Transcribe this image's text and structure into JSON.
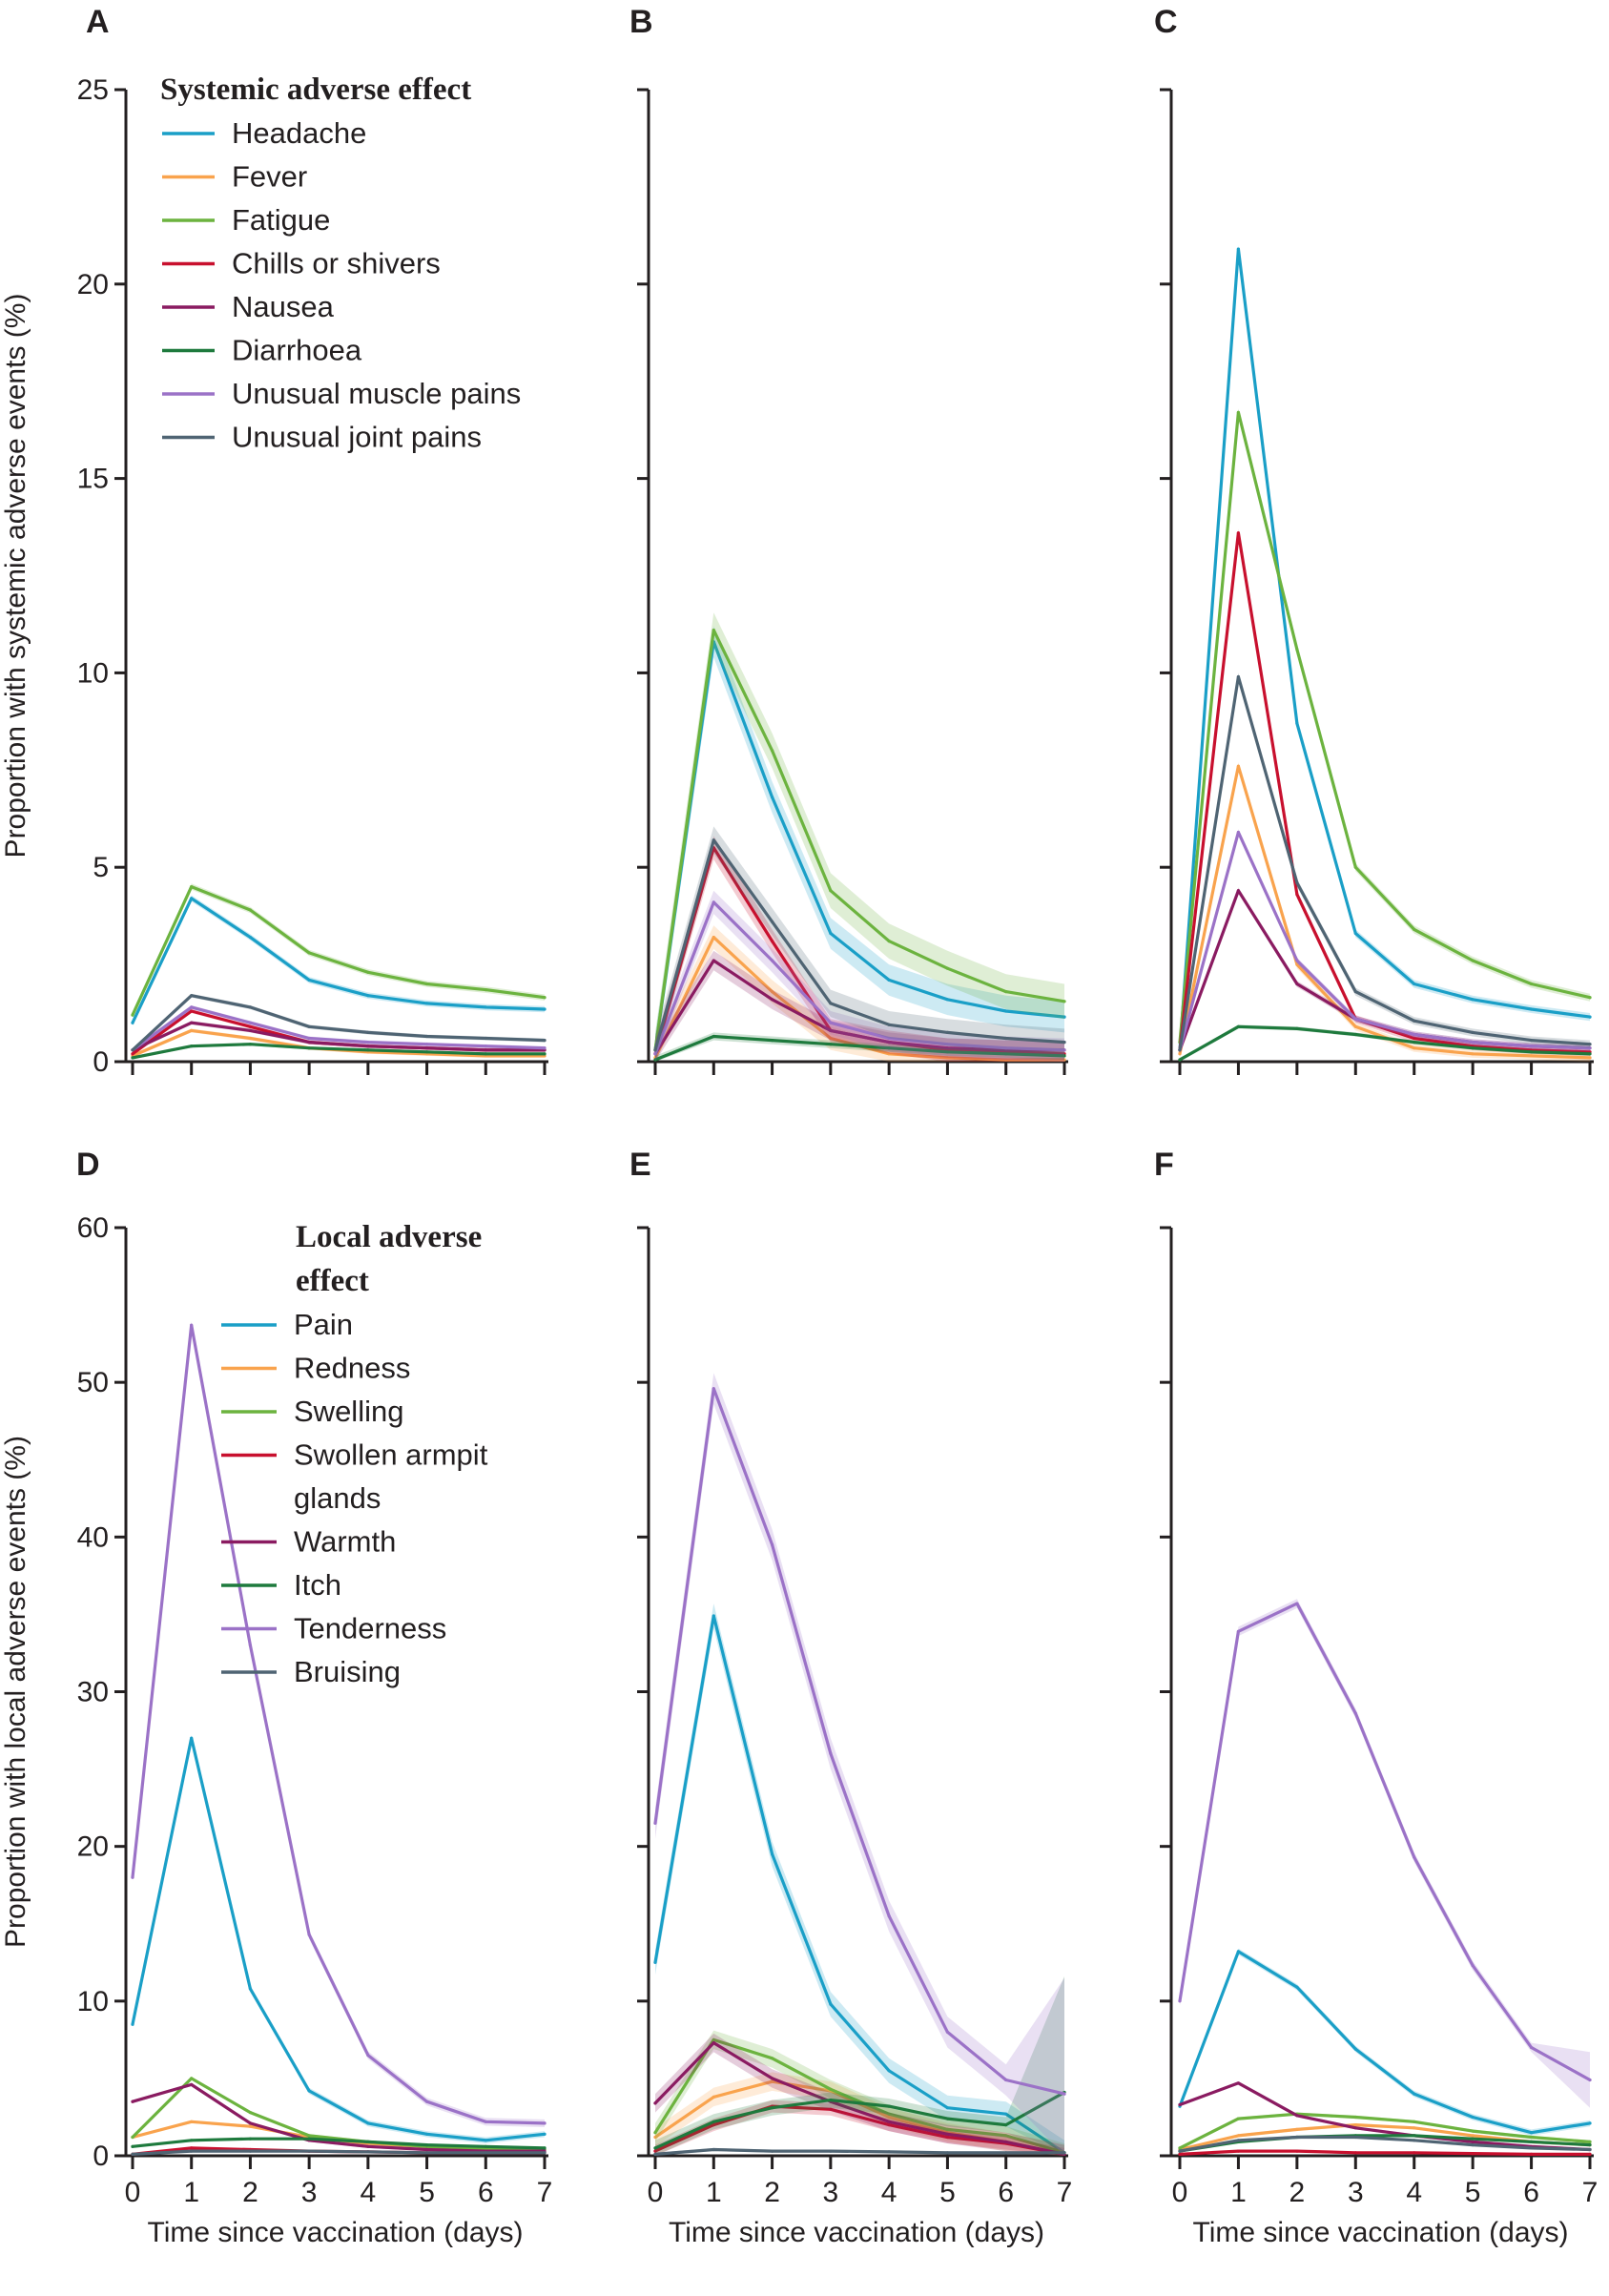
{
  "colors": {
    "headache": "#1a9fc7",
    "fever": "#f9a34d",
    "fatigue": "#6cb33f",
    "chills": "#c8102e",
    "nausea": "#8a1b61",
    "diarrhoea": "#1e7a3d",
    "muscle": "#9b72c7",
    "joint": "#4f6473",
    "axis": "#231f20"
  },
  "icon": "none",
  "legends": {
    "systemic": {
      "title_lines": [
        "Systemic adverse effect"
      ],
      "items": [
        {
          "lines": [
            "Headache"
          ],
          "color": "#1a9fc7"
        },
        {
          "lines": [
            "Fever"
          ],
          "color": "#f9a34d"
        },
        {
          "lines": [
            "Fatigue"
          ],
          "color": "#6cb33f"
        },
        {
          "lines": [
            "Chills or shivers"
          ],
          "color": "#c8102e"
        },
        {
          "lines": [
            "Nausea"
          ],
          "color": "#8a1b61"
        },
        {
          "lines": [
            "Diarrhoea"
          ],
          "color": "#1e7a3d"
        },
        {
          "lines": [
            "Unusual muscle pains"
          ],
          "color": "#9b72c7"
        },
        {
          "lines": [
            "Unusual joint pains"
          ],
          "color": "#4f6473"
        }
      ]
    },
    "local": {
      "title_lines": [
        "Local adverse",
        "effect"
      ],
      "items": [
        {
          "lines": [
            "Pain"
          ],
          "color": "#1a9fc7"
        },
        {
          "lines": [
            "Redness"
          ],
          "color": "#f9a34d"
        },
        {
          "lines": [
            "Swelling"
          ],
          "color": "#6cb33f"
        },
        {
          "lines": [
            "Swollen armpit",
            "glands"
          ],
          "color": "#c8102e"
        },
        {
          "lines": [
            "Warmth"
          ],
          "color": "#8a1b61"
        },
        {
          "lines": [
            "Itch"
          ],
          "color": "#1e7a3d"
        },
        {
          "lines": [
            "Tenderness"
          ],
          "color": "#9b72c7"
        },
        {
          "lines": [
            "Bruising"
          ],
          "color": "#4f6473"
        }
      ]
    }
  },
  "chart_data": [
    {
      "panel": "A",
      "type": "line",
      "legend": "systemic",
      "legend_placement": "top-left",
      "ylabel": "Proportion with systemic adverse events (%)",
      "xlabel": "",
      "ylim": [
        0,
        25
      ],
      "yticks": [
        0,
        5,
        10,
        15,
        20,
        25
      ],
      "y_tick_labels_shown": true,
      "x_tick_labels_shown": false,
      "x": [
        0,
        1,
        2,
        3,
        4,
        5,
        6,
        7
      ],
      "xlim": [
        0,
        7
      ],
      "grid": false,
      "series": [
        {
          "key": "headache",
          "values": [
            1.0,
            4.2,
            3.2,
            2.1,
            1.7,
            1.5,
            1.4,
            1.35
          ],
          "band": 0.08
        },
        {
          "key": "fever",
          "values": [
            0.15,
            0.8,
            0.6,
            0.35,
            0.25,
            0.2,
            0.15,
            0.15
          ],
          "band": 0.05
        },
        {
          "key": "fatigue",
          "values": [
            1.2,
            4.5,
            3.9,
            2.8,
            2.3,
            2.0,
            1.85,
            1.65
          ],
          "band": 0.08
        },
        {
          "key": "chills",
          "values": [
            0.2,
            1.3,
            0.9,
            0.5,
            0.4,
            0.35,
            0.3,
            0.3
          ],
          "band": 0.05
        },
        {
          "key": "nausea",
          "values": [
            0.3,
            1.0,
            0.8,
            0.5,
            0.4,
            0.35,
            0.3,
            0.3
          ],
          "band": 0.05
        },
        {
          "key": "diarrhoea",
          "values": [
            0.1,
            0.4,
            0.45,
            0.35,
            0.3,
            0.25,
            0.2,
            0.2
          ],
          "band": 0.04
        },
        {
          "key": "muscle",
          "values": [
            0.3,
            1.4,
            1.0,
            0.6,
            0.5,
            0.45,
            0.4,
            0.35
          ],
          "band": 0.05
        },
        {
          "key": "joint",
          "values": [
            0.3,
            1.7,
            1.4,
            0.9,
            0.75,
            0.65,
            0.6,
            0.55
          ],
          "band": 0.05
        }
      ]
    },
    {
      "panel": "B",
      "type": "line",
      "legend": null,
      "ylabel": "",
      "xlabel": "",
      "ylim": [
        0,
        25
      ],
      "yticks": [
        0,
        5,
        10,
        15,
        20,
        25
      ],
      "y_tick_labels_shown": false,
      "x_tick_labels_shown": false,
      "x": [
        0,
        1,
        2,
        3,
        4,
        5,
        6,
        7
      ],
      "xlim": [
        0,
        7
      ],
      "grid": false,
      "series": [
        {
          "key": "headache",
          "values": [
            0.3,
            10.8,
            6.8,
            3.3,
            2.1,
            1.6,
            1.3,
            1.15
          ],
          "band": 0.4
        },
        {
          "key": "fever",
          "values": [
            0.1,
            3.2,
            1.8,
            0.6,
            0.2,
            0.1,
            0.05,
            0.05
          ],
          "band": 0.3
        },
        {
          "key": "fatigue",
          "values": [
            0.3,
            11.1,
            8.0,
            4.4,
            3.1,
            2.4,
            1.8,
            1.55
          ],
          "band": 0.45
        },
        {
          "key": "chills",
          "values": [
            0.2,
            5.5,
            3.1,
            0.8,
            0.5,
            0.3,
            0.25,
            0.2
          ],
          "band": 0.3
        },
        {
          "key": "nausea",
          "values": [
            0.2,
            2.6,
            1.6,
            0.8,
            0.5,
            0.35,
            0.3,
            0.3
          ],
          "band": 0.25
        },
        {
          "key": "diarrhoea",
          "values": [
            0.05,
            0.65,
            0.55,
            0.45,
            0.35,
            0.25,
            0.2,
            0.15
          ],
          "band": 0.1
        },
        {
          "key": "muscle",
          "values": [
            0.2,
            4.1,
            2.6,
            1.0,
            0.6,
            0.45,
            0.35,
            0.3
          ],
          "band": 0.3
        },
        {
          "key": "joint",
          "values": [
            0.3,
            5.7,
            3.6,
            1.5,
            0.95,
            0.75,
            0.6,
            0.5
          ],
          "band": 0.35
        }
      ]
    },
    {
      "panel": "C",
      "type": "line",
      "legend": null,
      "ylabel": "",
      "xlabel": "",
      "ylim": [
        0,
        25
      ],
      "yticks": [
        0,
        5,
        10,
        15,
        20,
        25
      ],
      "y_tick_labels_shown": false,
      "x_tick_labels_shown": false,
      "x": [
        0,
        1,
        2,
        3,
        4,
        5,
        6,
        7
      ],
      "xlim": [
        0,
        7
      ],
      "grid": false,
      "series": [
        {
          "key": "headache",
          "values": [
            0.3,
            20.9,
            8.7,
            3.3,
            2.0,
            1.6,
            1.35,
            1.15
          ],
          "band": 0.1
        },
        {
          "key": "fever",
          "values": [
            0.2,
            7.6,
            2.5,
            0.9,
            0.35,
            0.2,
            0.15,
            0.1
          ],
          "band": 0.1
        },
        {
          "key": "fatigue",
          "values": [
            0.5,
            16.7,
            10.6,
            5.0,
            3.4,
            2.6,
            2.0,
            1.65
          ],
          "band": 0.1
        },
        {
          "key": "chills",
          "values": [
            0.3,
            13.6,
            4.3,
            1.1,
            0.6,
            0.4,
            0.3,
            0.25
          ],
          "band": 0.1
        },
        {
          "key": "nausea",
          "values": [
            0.3,
            4.4,
            2.0,
            1.1,
            0.7,
            0.5,
            0.4,
            0.35
          ],
          "band": 0.08
        },
        {
          "key": "diarrhoea",
          "values": [
            0.05,
            0.9,
            0.85,
            0.7,
            0.5,
            0.35,
            0.25,
            0.2
          ],
          "band": 0.05
        },
        {
          "key": "muscle",
          "values": [
            0.3,
            5.9,
            2.6,
            1.1,
            0.7,
            0.5,
            0.4,
            0.35
          ],
          "band": 0.08
        },
        {
          "key": "joint",
          "values": [
            0.3,
            9.9,
            4.6,
            1.8,
            1.05,
            0.75,
            0.55,
            0.45
          ],
          "band": 0.1
        }
      ]
    },
    {
      "panel": "D",
      "type": "line",
      "legend": "local",
      "legend_placement": "top-right",
      "ylabel": "Proportion with local adverse events (%)",
      "xlabel": "Time since vaccination (days)",
      "ylim": [
        0,
        60
      ],
      "yticks": [
        0,
        10,
        20,
        30,
        40,
        50,
        60
      ],
      "y_tick_labels_shown": true,
      "x_tick_labels_shown": true,
      "x": [
        0,
        1,
        2,
        3,
        4,
        5,
        6,
        7
      ],
      "xlim": [
        0,
        7
      ],
      "grid": false,
      "series": [
        {
          "key": "headache",
          "values": [
            8.5,
            27.0,
            10.8,
            4.2,
            2.1,
            1.4,
            1.0,
            1.4
          ],
          "band": 0.2
        },
        {
          "key": "fever",
          "values": [
            1.2,
            2.2,
            1.9,
            1.2,
            0.8,
            0.6,
            0.5,
            0.4
          ],
          "band": 0.1
        },
        {
          "key": "fatigue",
          "values": [
            1.2,
            5.0,
            2.8,
            1.3,
            0.9,
            0.6,
            0.45,
            0.4
          ],
          "band": 0.1
        },
        {
          "key": "chills",
          "values": [
            0.1,
            0.5,
            0.4,
            0.3,
            0.25,
            0.2,
            0.2,
            0.2
          ],
          "band": 0.05
        },
        {
          "key": "nausea",
          "values": [
            3.5,
            4.6,
            2.1,
            1.0,
            0.6,
            0.4,
            0.3,
            0.3
          ],
          "band": 0.1
        },
        {
          "key": "diarrhoea",
          "values": [
            0.6,
            1.0,
            1.1,
            1.1,
            0.9,
            0.7,
            0.6,
            0.5
          ],
          "band": 0.05
        },
        {
          "key": "muscle",
          "values": [
            18.0,
            53.7,
            33.0,
            14.3,
            6.5,
            3.5,
            2.2,
            2.1
          ],
          "band": 0.25
        },
        {
          "key": "joint",
          "values": [
            0.1,
            0.3,
            0.3,
            0.3,
            0.25,
            0.2,
            0.2,
            0.2
          ],
          "band": 0.05
        }
      ]
    },
    {
      "panel": "E",
      "type": "line",
      "legend": null,
      "ylabel": "",
      "xlabel": "Time since vaccination (days)",
      "ylim": [
        0,
        60
      ],
      "yticks": [
        0,
        10,
        20,
        30,
        40,
        50,
        60
      ],
      "y_tick_labels_shown": false,
      "x_tick_labels_shown": true,
      "x": [
        0,
        1,
        2,
        3,
        4,
        5,
        6,
        7
      ],
      "xlim": [
        0,
        7
      ],
      "grid": false,
      "series": [
        {
          "key": "headache",
          "values": [
            12.5,
            34.9,
            19.5,
            9.8,
            5.5,
            3.1,
            2.7,
            0.2
          ],
          "band": 0.8
        },
        {
          "key": "fever",
          "values": [
            1.2,
            3.8,
            4.8,
            4.2,
            2.5,
            1.5,
            0.9,
            0.1
          ],
          "band": 0.6
        },
        {
          "key": "fatigue",
          "values": [
            1.5,
            7.5,
            6.3,
            4.3,
            2.7,
            1.7,
            1.3,
            0.2
          ],
          "band": 0.6
        },
        {
          "key": "chills",
          "values": [
            0.3,
            2.0,
            3.2,
            3.0,
            2.0,
            1.2,
            0.8,
            0.1
          ],
          "band": 0.4
        },
        {
          "key": "nausea",
          "values": [
            3.4,
            7.3,
            5.0,
            3.5,
            2.2,
            1.4,
            0.9,
            0.1
          ],
          "band": 0.6
        },
        {
          "key": "diarrhoea",
          "values": [
            0.5,
            2.2,
            3.1,
            3.6,
            3.2,
            2.4,
            2.0,
            4.1
          ],
          "band": 0.5,
          "band_end": 7.5
        },
        {
          "key": "muscle",
          "values": [
            21.5,
            49.6,
            39.5,
            26.0,
            15.5,
            8.0,
            4.9,
            4.0
          ],
          "band": 1.0,
          "band_end": 7.5
        },
        {
          "key": "joint",
          "values": [
            0.1,
            0.4,
            0.3,
            0.3,
            0.25,
            0.2,
            0.2,
            0.2
          ],
          "band": 0.1
        }
      ]
    },
    {
      "panel": "F",
      "type": "line",
      "legend": null,
      "ylabel": "",
      "xlabel": "Time since vaccination (days)",
      "ylim": [
        0,
        60
      ],
      "yticks": [
        0,
        10,
        20,
        30,
        40,
        50,
        60
      ],
      "y_tick_labels_shown": false,
      "x_tick_labels_shown": true,
      "x": [
        0,
        1,
        2,
        3,
        4,
        5,
        6,
        7
      ],
      "xlim": [
        0,
        7
      ],
      "grid": false,
      "series": [
        {
          "key": "headache",
          "values": [
            3.2,
            13.2,
            10.9,
            6.9,
            4.0,
            2.5,
            1.5,
            2.1
          ],
          "band": 0.2
        },
        {
          "key": "fever",
          "values": [
            0.4,
            1.3,
            1.7,
            2.0,
            1.8,
            1.3,
            0.9,
            0.7
          ],
          "band": 0.1
        },
        {
          "key": "fatigue",
          "values": [
            0.5,
            2.4,
            2.7,
            2.5,
            2.2,
            1.6,
            1.2,
            0.9
          ],
          "band": 0.1
        },
        {
          "key": "chills",
          "values": [
            0.1,
            0.3,
            0.3,
            0.2,
            0.2,
            0.15,
            0.1,
            0.1
          ],
          "band": 0.05
        },
        {
          "key": "nausea",
          "values": [
            3.3,
            4.7,
            2.6,
            1.8,
            1.3,
            0.9,
            0.6,
            0.4
          ],
          "band": 0.1
        },
        {
          "key": "diarrhoea",
          "values": [
            0.3,
            0.9,
            1.2,
            1.3,
            1.3,
            1.1,
            0.9,
            0.7
          ],
          "band": 0.05
        },
        {
          "key": "muscle",
          "values": [
            10.0,
            33.9,
            35.7,
            28.6,
            19.3,
            12.3,
            7.0,
            4.9
          ],
          "band": 0.3,
          "band_end": 1.8
        },
        {
          "key": "joint",
          "values": [
            0.3,
            1.0,
            1.2,
            1.2,
            1.0,
            0.7,
            0.5,
            0.4
          ],
          "band": 0.05
        }
      ]
    }
  ]
}
